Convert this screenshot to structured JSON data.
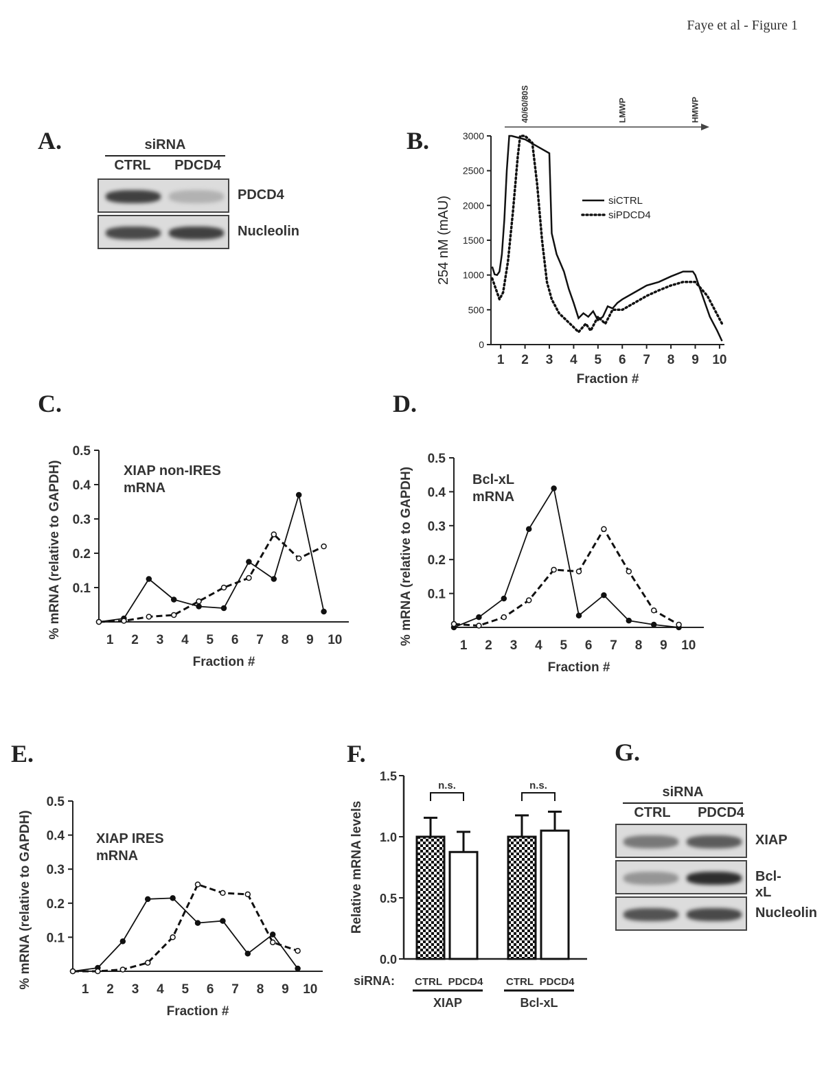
{
  "header": {
    "text": "Faye et al - Figure 1"
  },
  "panels": {
    "A": {
      "letter": "A.",
      "group_label": "siRNA",
      "lanes": [
        "CTRL",
        "PDCD4"
      ],
      "blots": [
        {
          "label": "PDCD4",
          "band_intensity": [
            0.85,
            0.25
          ]
        },
        {
          "label": "Nucleolin",
          "band_intensity": [
            0.8,
            0.85
          ]
        }
      ]
    },
    "G": {
      "letter": "G.",
      "group_label": "siRNA",
      "lanes": [
        "CTRL",
        "PDCD4"
      ],
      "blots": [
        {
          "label": "XIAP",
          "band_intensity": [
            0.55,
            0.7
          ]
        },
        {
          "label": "Bcl-xL",
          "band_intensity": [
            0.4,
            0.95
          ]
        },
        {
          "label": "Nucleolin",
          "band_intensity": [
            0.75,
            0.8
          ]
        }
      ]
    }
  },
  "chart_data": [
    {
      "panel": "B.",
      "type": "line",
      "title": "",
      "xlabel": "Fraction #",
      "ylabel": "254 nM (mAU)",
      "ylim": [
        0,
        3000
      ],
      "xlim": [
        0.6,
        10.2
      ],
      "yticks": [
        0,
        500,
        1000,
        1500,
        2000,
        2500,
        3000
      ],
      "xticks": [
        "1",
        "2",
        "3",
        "4",
        "5",
        "6",
        "7",
        "8",
        "9",
        "10"
      ],
      "annotations": [
        "40/60/80S",
        "LMWP",
        "HMWP"
      ],
      "annotation_x": [
        2,
        6,
        9
      ],
      "legend": [
        "siCTRL",
        "siPDCD4"
      ],
      "series": [
        {
          "name": "siCTRL",
          "style": "solid",
          "x": [
            0.65,
            0.75,
            0.85,
            0.95,
            1.05,
            1.15,
            1.25,
            1.35,
            1.45,
            2.0,
            2.5,
            3.0,
            3.1,
            3.3,
            3.6,
            3.8,
            4.0,
            4.2,
            4.4,
            4.6,
            4.8,
            5.0,
            5.2,
            5.4,
            5.6,
            5.8,
            6.0,
            6.5,
            7.0,
            7.5,
            8.0,
            8.5,
            8.9,
            9.0,
            9.3,
            9.6,
            9.9,
            10.1
          ],
          "y": [
            1120,
            1010,
            1000,
            1050,
            1300,
            1800,
            2500,
            3000,
            3000,
            2950,
            2850,
            2750,
            1600,
            1300,
            1050,
            800,
            600,
            380,
            450,
            400,
            480,
            350,
            400,
            550,
            520,
            600,
            650,
            750,
            850,
            900,
            980,
            1050,
            1050,
            1000,
            700,
            400,
            200,
            50
          ]
        },
        {
          "name": "siPDCD4",
          "style": "dotted",
          "x": [
            0.65,
            0.8,
            0.95,
            1.1,
            1.3,
            1.5,
            1.7,
            1.8,
            1.9,
            2.0,
            2.3,
            2.5,
            2.7,
            2.9,
            3.1,
            3.4,
            3.7,
            4.0,
            4.2,
            4.5,
            4.7,
            5.0,
            5.3,
            5.6,
            6.0,
            6.5,
            7.0,
            7.5,
            8.0,
            8.5,
            9.0,
            9.5,
            10.1
          ],
          "y": [
            950,
            800,
            650,
            750,
            1200,
            1900,
            2700,
            3000,
            3000,
            3000,
            2900,
            2300,
            1500,
            900,
            650,
            450,
            350,
            250,
            180,
            300,
            200,
            400,
            300,
            500,
            500,
            600,
            700,
            780,
            850,
            900,
            900,
            700,
            300
          ]
        }
      ]
    },
    {
      "panel": "C.",
      "type": "line",
      "title": "XIAP non-IRES\nmRNA",
      "title_lines": [
        "XIAP non-IRES",
        "mRNA"
      ],
      "xlabel": "Fraction #",
      "ylabel": "% mRNA (relative to GAPDH)",
      "ylim": [
        0,
        0.5
      ],
      "yticks": [
        "0.1",
        "0.2",
        "0.3",
        "0.4",
        "0.5"
      ],
      "xticks": [
        "1",
        "2",
        "3",
        "4",
        "5",
        "6",
        "7",
        "8",
        "9",
        "10"
      ],
      "series": [
        {
          "name": "siCTRL",
          "style": "solid-filled",
          "x": [
            0,
            1,
            2,
            3,
            4,
            5,
            6,
            7,
            8,
            9,
            10
          ],
          "y": [
            0.0,
            0.01,
            0.125,
            0.065,
            0.045,
            0.04,
            0.175,
            0.125,
            0.37,
            0.03,
            null
          ]
        },
        {
          "name": "siPDCD4",
          "style": "dashed-open",
          "x": [
            0,
            1,
            2,
            3,
            4,
            5,
            6,
            7,
            8,
            9
          ],
          "y": [
            0.0,
            0.003,
            0.015,
            0.02,
            0.06,
            0.1,
            0.128,
            0.255,
            0.185,
            0.22
          ]
        }
      ]
    },
    {
      "panel": "D.",
      "type": "line",
      "title": "Bcl-xL\nmRNA",
      "title_lines": [
        "Bcl-xL",
        "mRNA"
      ],
      "xlabel": "Fraction #",
      "ylabel": "% mRNA (relative to GAPDH)",
      "ylim": [
        0,
        0.5
      ],
      "yticks": [
        "0.1",
        "0.2",
        "0.3",
        "0.4",
        "0.5"
      ],
      "xticks": [
        "1",
        "2",
        "3",
        "4",
        "5",
        "6",
        "7",
        "8",
        "9",
        "10"
      ],
      "series": [
        {
          "name": "siCTRL",
          "style": "solid-filled",
          "x": [
            0,
            1,
            2,
            3,
            4,
            5,
            6,
            7,
            8,
            9
          ],
          "y": [
            0.0,
            0.03,
            0.085,
            0.29,
            0.41,
            0.035,
            0.095,
            0.02,
            0.008,
            0.0
          ]
        },
        {
          "name": "siPDCD4",
          "style": "dashed-open",
          "x": [
            0,
            1,
            2,
            3,
            4,
            5,
            6,
            7,
            8,
            9
          ],
          "y": [
            0.01,
            0.005,
            0.03,
            0.08,
            0.17,
            0.165,
            0.29,
            0.165,
            0.05,
            0.008
          ]
        }
      ]
    },
    {
      "panel": "E.",
      "type": "line",
      "title": "XIAP IRES\nmRNA",
      "title_lines": [
        "XIAP IRES",
        "mRNA"
      ],
      "xlabel": "Fraction #",
      "ylabel": "% mRNA (relative to GAPDH)",
      "ylim": [
        0,
        0.5
      ],
      "yticks": [
        "0.1",
        "0.2",
        "0.3",
        "0.4",
        "0.5"
      ],
      "xticks": [
        "1",
        "2",
        "3",
        "4",
        "5",
        "6",
        "7",
        "8",
        "9",
        "10"
      ],
      "series": [
        {
          "name": "siCTRL",
          "style": "solid-filled",
          "x": [
            0,
            1,
            2,
            3,
            4,
            5,
            6,
            7,
            8,
            9
          ],
          "y": [
            0.0,
            0.01,
            0.088,
            0.212,
            0.215,
            0.142,
            0.148,
            0.052,
            0.108,
            0.008
          ]
        },
        {
          "name": "siPDCD4",
          "style": "dashed-open",
          "x": [
            0,
            1,
            2,
            3,
            4,
            5,
            6,
            7,
            8,
            9
          ],
          "y": [
            0.0,
            0.0,
            0.005,
            0.025,
            0.1,
            0.255,
            0.23,
            0.226,
            0.085,
            0.06
          ]
        }
      ]
    },
    {
      "panel": "F.",
      "type": "bar",
      "ylabel": "Relative mRNA levels",
      "ylim": [
        0,
        1.5
      ],
      "yticks": [
        "0.0",
        "0.5",
        "1.0",
        "1.5"
      ],
      "xprefix": "siRNA:",
      "categories": [
        "CTRL",
        "PDCD4",
        "CTRL",
        "PDCD4"
      ],
      "groups": [
        "XIAP",
        "Bcl-xL"
      ],
      "values": [
        1.0,
        0.875,
        1.0,
        1.05
      ],
      "errors": [
        0.155,
        0.165,
        0.175,
        0.155
      ],
      "fills": [
        "checker",
        "white",
        "checker",
        "white"
      ],
      "significance": [
        "n.s.",
        "n.s."
      ]
    }
  ]
}
